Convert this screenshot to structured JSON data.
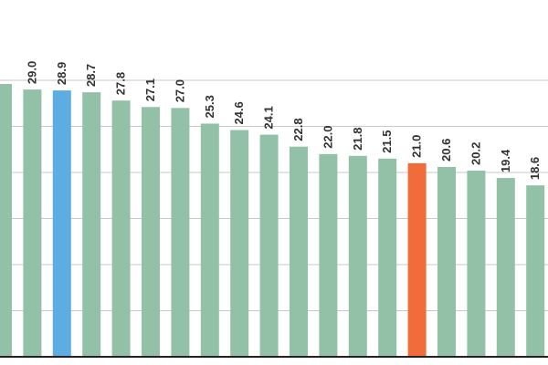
{
  "chart_data": {
    "type": "bar",
    "values": [
      29.6,
      29.0,
      28.9,
      28.7,
      27.8,
      27.1,
      27.0,
      25.3,
      24.6,
      24.1,
      22.8,
      22.0,
      21.8,
      21.5,
      21.0,
      20.6,
      20.2,
      19.4,
      18.6
    ],
    "labels": [
      "",
      "29.0",
      "28.9",
      "28.7",
      "27.8",
      "27.1",
      "27.0",
      "25.3",
      "24.6",
      "24.1",
      "22.8",
      "22.0",
      "21.8",
      "21.5",
      "21.0",
      "20.6",
      "20.2",
      "19.4",
      "18.6"
    ],
    "ylim": [
      0,
      31
    ],
    "grid": true,
    "colors": [
      "#93c1a8",
      "#93c1a8",
      "#5dade2",
      "#93c1a8",
      "#93c1a8",
      "#93c1a8",
      "#93c1a8",
      "#93c1a8",
      "#93c1a8",
      "#93c1a8",
      "#93c1a8",
      "#93c1a8",
      "#93c1a8",
      "#93c1a8",
      "#f26b3a",
      "#93c1a8",
      "#93c1a8",
      "#93c1a8",
      "#93c1a8"
    ]
  }
}
